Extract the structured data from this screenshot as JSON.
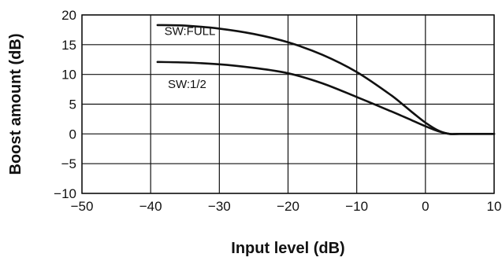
{
  "chart_data": {
    "type": "line",
    "xlabel": "Input level (dB)",
    "ylabel": "Boost amount (dB)",
    "xlim": [
      -50,
      10
    ],
    "ylim": [
      -10,
      20
    ],
    "xticks": [
      -50,
      -40,
      -30,
      -20,
      -10,
      0,
      10
    ],
    "xtick_labels": [
      "−50",
      "−40",
      "−30",
      "−20",
      "−10",
      "0",
      "10"
    ],
    "yticks": [
      -10,
      -5,
      0,
      5,
      10,
      15,
      20
    ],
    "ytick_labels": [
      "−10",
      "−5",
      "0",
      "5",
      "10",
      "15",
      "20"
    ],
    "grid": true,
    "series": [
      {
        "name": "SW:FULL",
        "x": [
          -39,
          -35,
          -30,
          -25,
          -20,
          -15,
          -10,
          -5,
          -2,
          0,
          2,
          3.5,
          5,
          10
        ],
        "y": [
          18.3,
          18.2,
          17.7,
          16.8,
          15.4,
          13.3,
          10.4,
          6.5,
          3.7,
          1.9,
          0.5,
          0,
          0,
          0
        ]
      },
      {
        "name": "SW:1/2",
        "x": [
          -39,
          -35,
          -30,
          -25,
          -20,
          -15,
          -10,
          -5,
          -2,
          0,
          2,
          3.5,
          5,
          10
        ],
        "y": [
          12.1,
          12.0,
          11.7,
          11.1,
          10.2,
          8.5,
          6.2,
          3.8,
          2.3,
          1.3,
          0.4,
          0,
          0,
          0
        ]
      }
    ],
    "annotations": [
      {
        "text": "SW:FULL",
        "x": -38,
        "y": 16.6
      },
      {
        "text": "SW:1/2",
        "x": -37.5,
        "y": 7.7
      }
    ]
  }
}
